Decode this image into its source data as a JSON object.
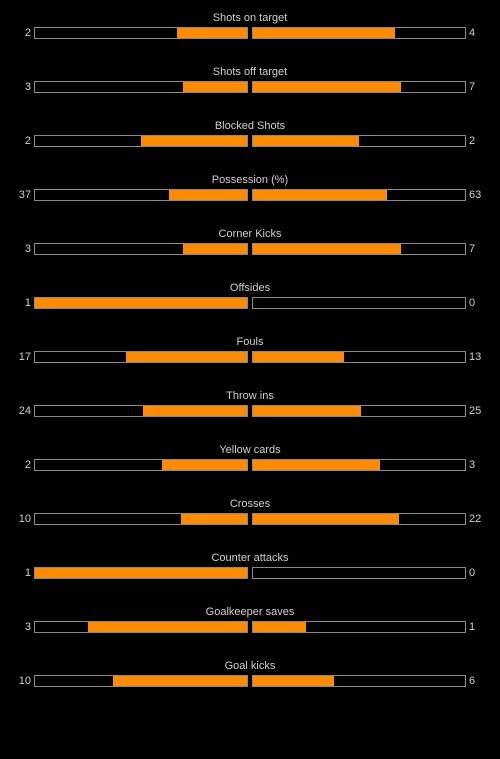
{
  "stats": [
    {
      "label": "Shots on target",
      "home": "2",
      "away": "4",
      "home_fill": 0.33,
      "away_fill": 0.67
    },
    {
      "label": "Shots off target",
      "home": "3",
      "away": "7",
      "home_fill": 0.3,
      "away_fill": 0.7
    },
    {
      "label": "Blocked Shots",
      "home": "2",
      "away": "2",
      "home_fill": 0.5,
      "away_fill": 0.5
    },
    {
      "label": "Possession (%)",
      "home": "37",
      "away": "63",
      "home_fill": 0.37,
      "away_fill": 0.63
    },
    {
      "label": "Corner Kicks",
      "home": "3",
      "away": "7",
      "home_fill": 0.3,
      "away_fill": 0.7
    },
    {
      "label": "Offsides",
      "home": "1",
      "away": "0",
      "home_fill": 1.0,
      "away_fill": 0.0
    },
    {
      "label": "Fouls",
      "home": "17",
      "away": "13",
      "home_fill": 0.57,
      "away_fill": 0.43
    },
    {
      "label": "Throw ins",
      "home": "24",
      "away": "25",
      "home_fill": 0.49,
      "away_fill": 0.51
    },
    {
      "label": "Yellow cards",
      "home": "2",
      "away": "3",
      "home_fill": 0.4,
      "away_fill": 0.6
    },
    {
      "label": "Crosses",
      "home": "10",
      "away": "22",
      "home_fill": 0.31,
      "away_fill": 0.69
    },
    {
      "label": "Counter attacks",
      "home": "1",
      "away": "0",
      "home_fill": 1.0,
      "away_fill": 0.0
    },
    {
      "label": "Goalkeeper saves",
      "home": "3",
      "away": "1",
      "home_fill": 0.75,
      "away_fill": 0.25
    },
    {
      "label": "Goal kicks",
      "home": "10",
      "away": "6",
      "home_fill": 0.63,
      "away_fill": 0.38
    }
  ],
  "colors": {
    "background": "#000000",
    "bar_fill": "#ff8c00",
    "bar_border": "#8a8a8a",
    "text": "#d0d0d0"
  }
}
